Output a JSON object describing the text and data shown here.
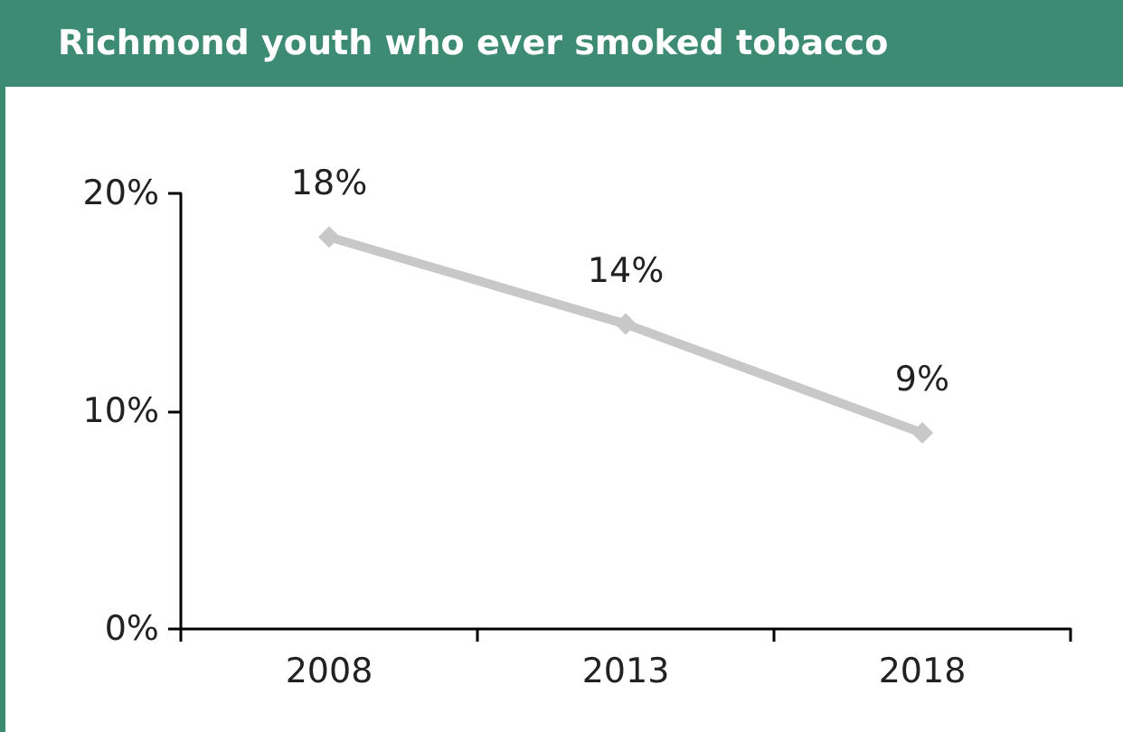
{
  "chart_data": {
    "type": "line",
    "title": "Richmond youth who ever smoked tobacco",
    "categories": [
      "2008",
      "2013",
      "2018"
    ],
    "series": [
      {
        "color": "#c8c8c8",
        "values": [
          18,
          14,
          9
        ],
        "value_labels": [
          "18%",
          "14%",
          "9%"
        ]
      }
    ],
    "ylim": [
      0,
      20
    ],
    "yticks": [
      {
        "value": 0,
        "label": "0%"
      },
      {
        "value": 10,
        "label": "10%"
      },
      {
        "value": 20,
        "label": "20%"
      }
    ],
    "grid": false,
    "marker": "diamond",
    "line_style": "solid"
  }
}
